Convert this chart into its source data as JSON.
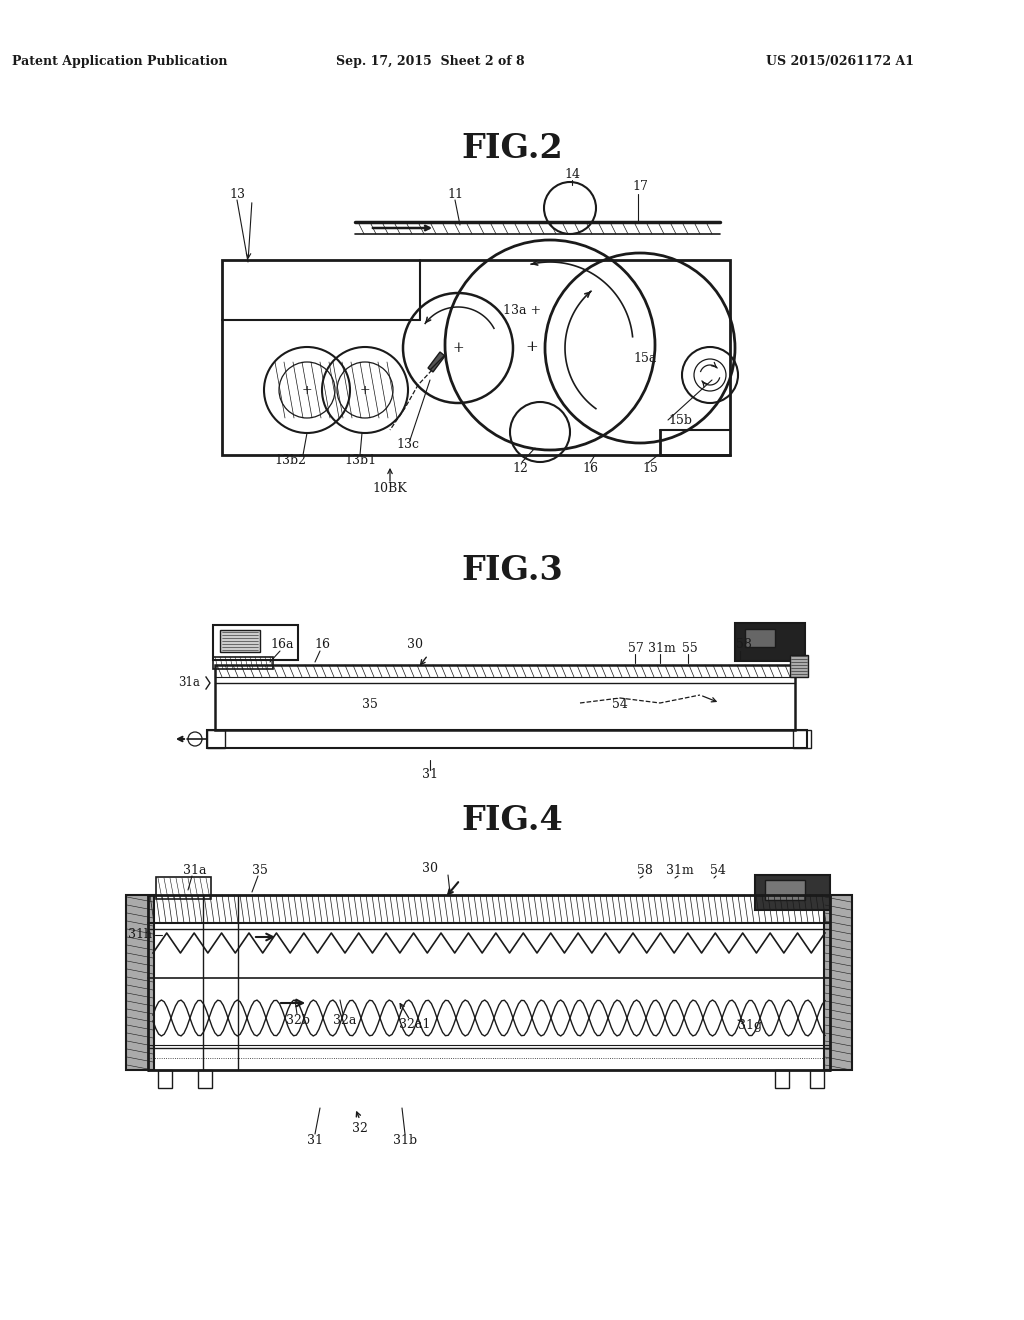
{
  "bg_color": "#ffffff",
  "lc": "#1a1a1a",
  "header_left": "Patent Application Publication",
  "header_mid": "Sep. 17, 2015  Sheet 2 of 8",
  "header_right": "US 2015/0261172 A1"
}
